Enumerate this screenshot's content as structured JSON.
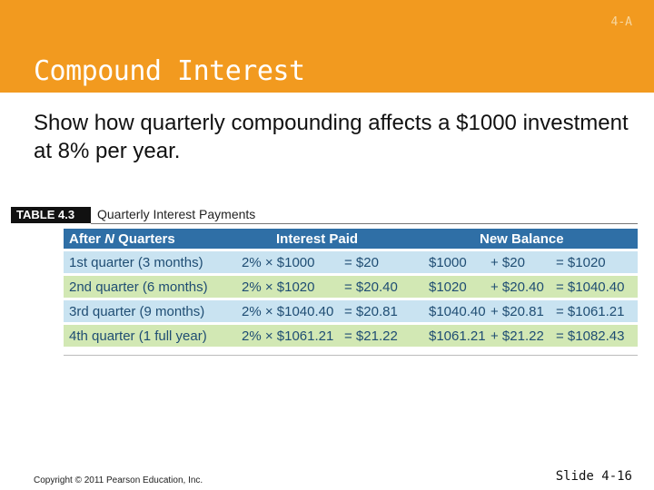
{
  "header": {
    "section_tag": "4-A",
    "title": "Compound Interest"
  },
  "body": {
    "text": "Show how quarterly compounding affects a $1000 investment at 8% per year."
  },
  "table": {
    "tag": "TABLE 4.3",
    "caption": "Quarterly Interest Payments",
    "headers": [
      "After N Quarters",
      "Interest Paid",
      "New Balance"
    ],
    "rows": [
      {
        "period": "1st quarter (3 months)",
        "rate": "2% × $1000",
        "interest": "= $20",
        "prior": "$1000",
        "added": "+ $20",
        "balance": "= $1020"
      },
      {
        "period": "2nd quarter (6 months)",
        "rate": "2% × $1020",
        "interest": "= $20.40",
        "prior": "$1020",
        "added": "+ $20.40",
        "balance": "= $1040.40"
      },
      {
        "period": "3rd quarter (9 months)",
        "rate": "2% × $1040.40",
        "interest": "= $20.81",
        "prior": "$1040.40",
        "added": "+ $20.81",
        "balance": "= $1061.21"
      },
      {
        "period": "4th quarter (1 full year)",
        "rate": "2% × $1061.21",
        "interest": "= $21.22",
        "prior": "$1061.21",
        "added": "+ $21.22",
        "balance": "= $1082.43"
      }
    ],
    "colors": {
      "header_bg": "#2f6fa6",
      "row_blue": "#c9e3f1",
      "row_green": "#d2e8b4"
    }
  },
  "footer": {
    "copyright": "Copyright © 2011 Pearson Education, Inc.",
    "slide_number": "Slide 4-16"
  },
  "theme": {
    "header_color": "#f29a1f"
  }
}
